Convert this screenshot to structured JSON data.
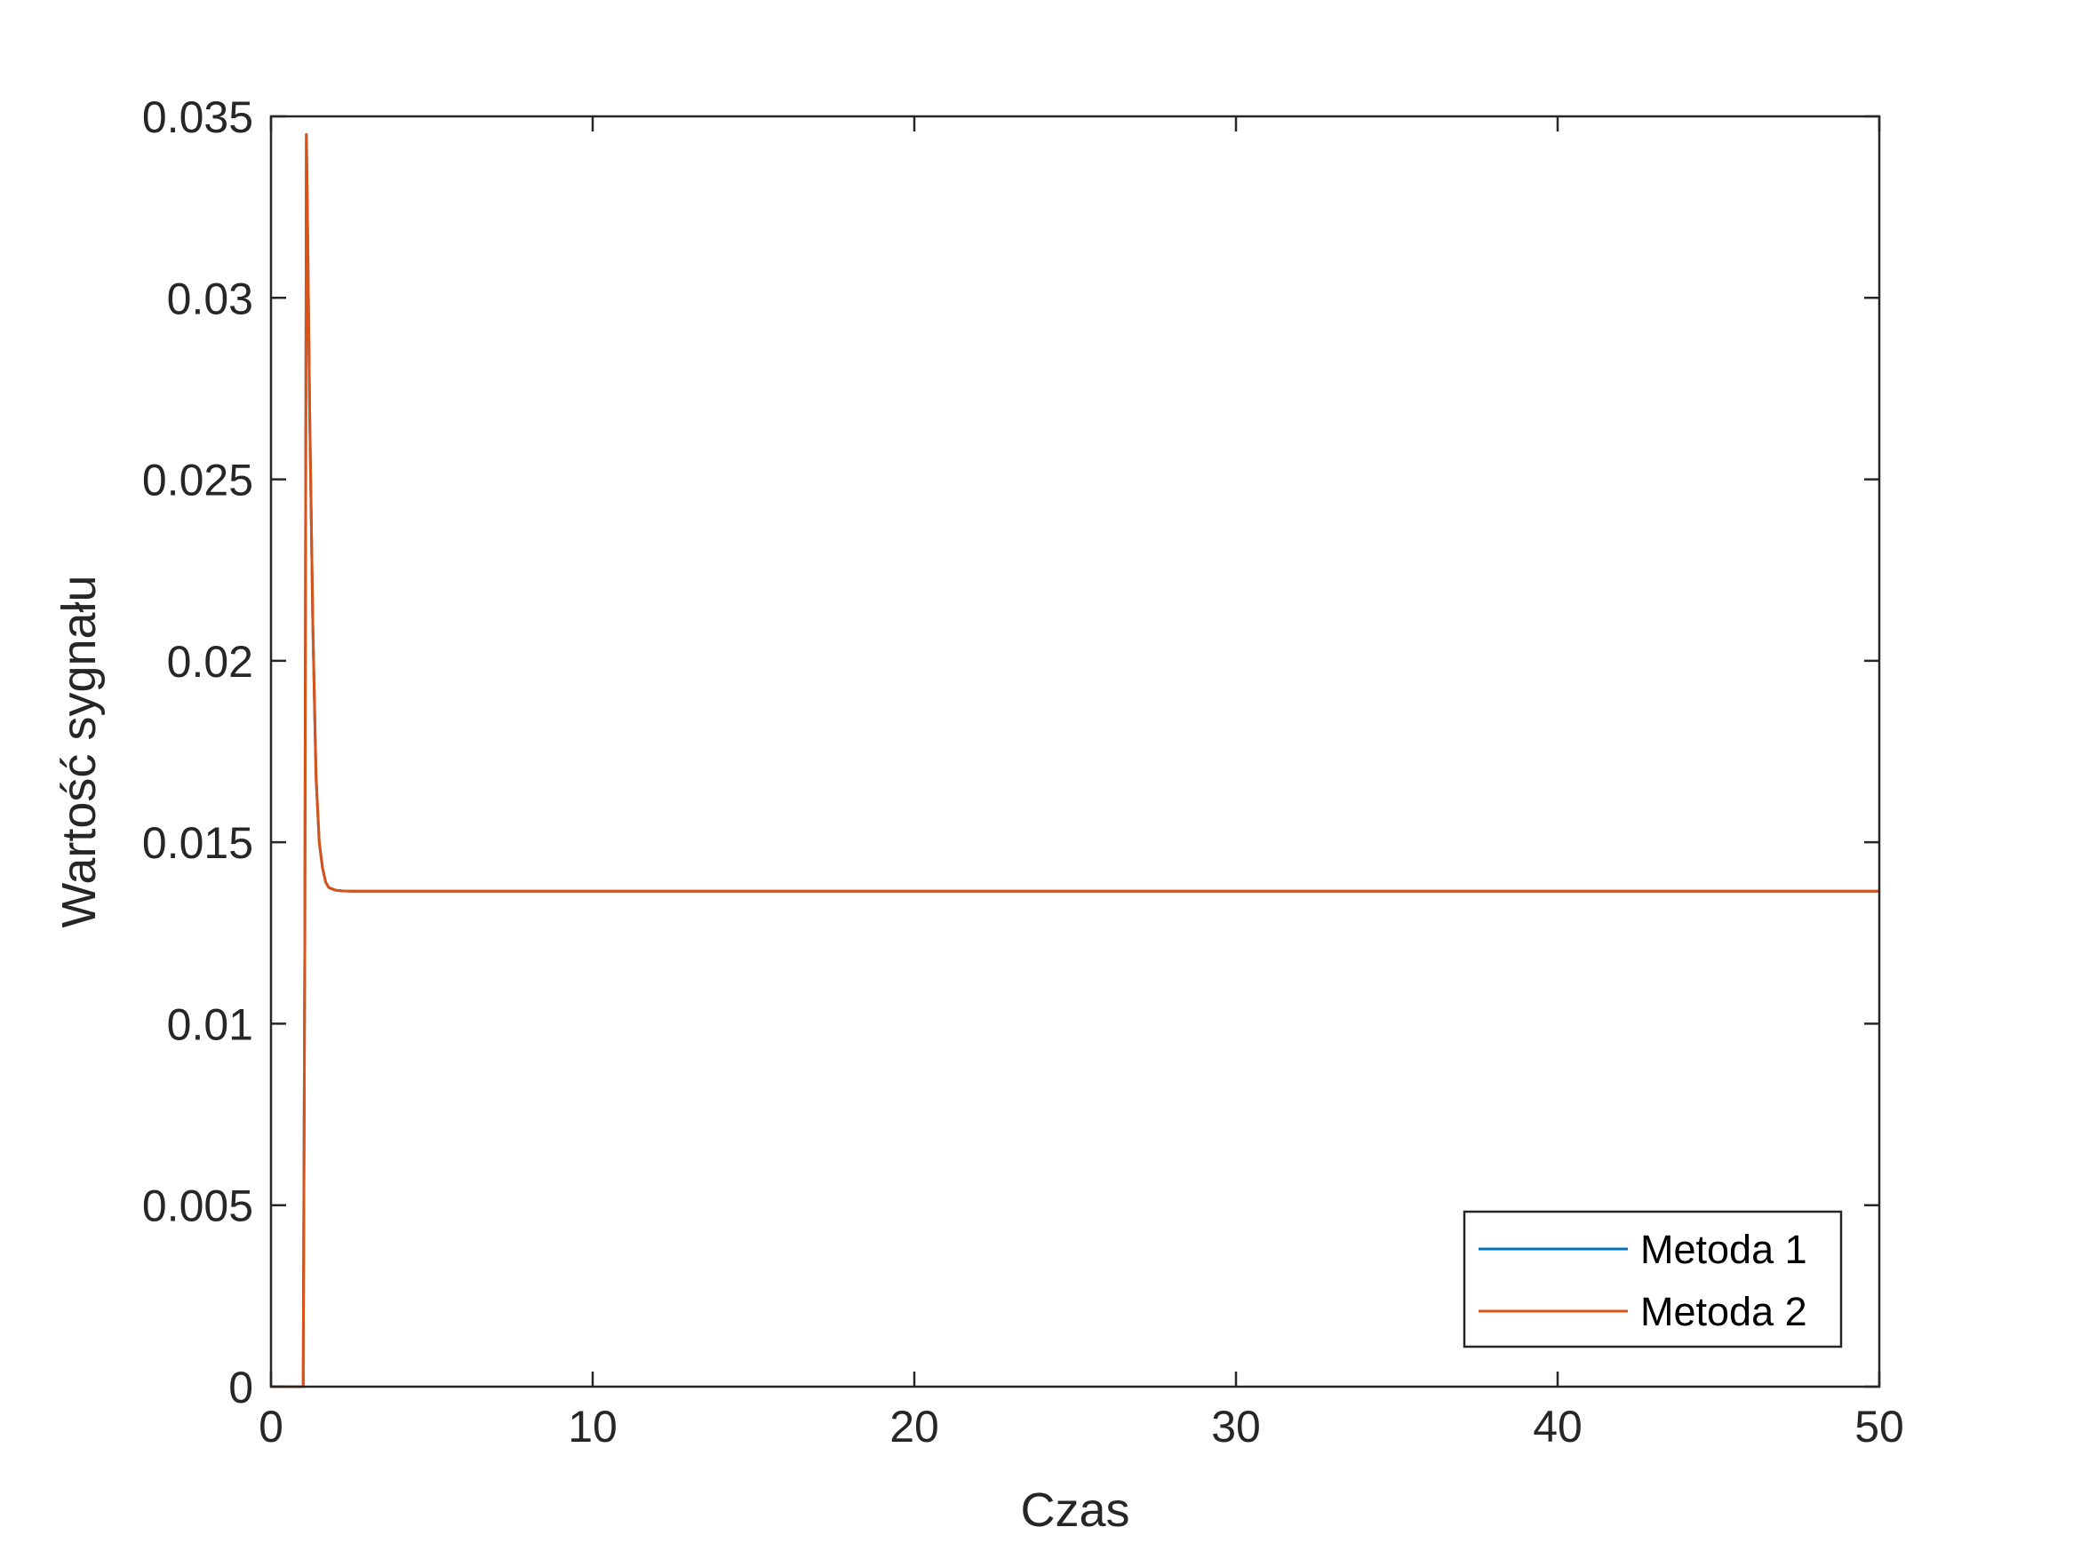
{
  "chart_data": {
    "type": "line",
    "title": "",
    "xlabel": "Czas",
    "ylabel": "Wartość sygnału",
    "xlim": [
      0,
      50
    ],
    "ylim": [
      0,
      0.035
    ],
    "xticks": [
      0,
      10,
      20,
      30,
      40,
      50
    ],
    "xtick_labels": [
      "0",
      "10",
      "20",
      "30",
      "40",
      "50"
    ],
    "yticks": [
      0,
      0.005,
      0.01,
      0.015,
      0.02,
      0.025,
      0.03,
      0.035
    ],
    "ytick_labels": [
      "0",
      "0.005",
      "0.01",
      "0.015",
      "0.02",
      "0.025",
      "0.03",
      "0.035"
    ],
    "grid": false,
    "legend_position": "bottom-right",
    "series": [
      {
        "name": "Metoda 1",
        "color": "#0072BD",
        "x": [
          0,
          1.0,
          1.05,
          1.1,
          1.15,
          1.2,
          1.3,
          1.4,
          1.5,
          1.6,
          1.7,
          1.8,
          2.0,
          2.2,
          2.5,
          3.0,
          5,
          10,
          20,
          30,
          40,
          50
        ],
        "y": [
          0,
          0,
          0.012,
          0.0345,
          0.031,
          0.027,
          0.021,
          0.0168,
          0.015,
          0.0143,
          0.0139,
          0.01375,
          0.01368,
          0.01366,
          0.01365,
          0.01365,
          0.01365,
          0.01365,
          0.01365,
          0.01365,
          0.01365,
          0.01365
        ]
      },
      {
        "name": "Metoda 2",
        "color": "#D95319",
        "x": [
          0,
          1.0,
          1.05,
          1.1,
          1.15,
          1.2,
          1.3,
          1.4,
          1.5,
          1.6,
          1.7,
          1.8,
          2.0,
          2.2,
          2.5,
          3.0,
          5,
          10,
          20,
          30,
          40,
          50
        ],
        "y": [
          0,
          0,
          0.012,
          0.0345,
          0.031,
          0.027,
          0.021,
          0.0168,
          0.015,
          0.0143,
          0.0139,
          0.01375,
          0.01368,
          0.01366,
          0.01365,
          0.01365,
          0.01365,
          0.01365,
          0.01365,
          0.01365,
          0.01365,
          0.01365
        ]
      }
    ]
  }
}
